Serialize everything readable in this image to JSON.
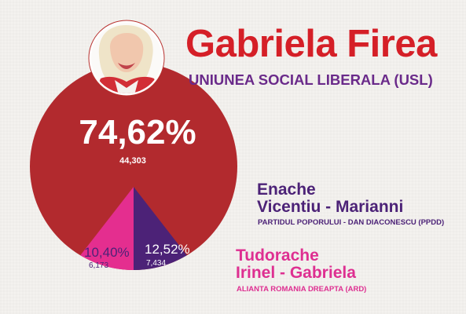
{
  "winner": {
    "name": "Gabriela Firea",
    "party": "UNIUNEA SOCIAL LIBERALA (USL)"
  },
  "candidates": [
    {
      "name_line1": "Enache",
      "name_line2": "Vicentiu - Marianni",
      "party": "PARTIDUL POPORULUI - DAN DIACONESCU (PPDD)"
    },
    {
      "name_line1": "Tudorache",
      "name_line2": "Irinel - Gabriela",
      "party": "ALIANTA ROMANIA DREAPTA (ARD)"
    }
  ],
  "colors": {
    "winner": "#b22a2e",
    "ppdd": "#4c2277",
    "ard": "#e42e8f",
    "title": "#d51f27"
  },
  "chart_data": {
    "type": "pie",
    "slices": [
      {
        "label": "Gabriela Firea",
        "percent": 74.62,
        "percent_text": "74,62%",
        "votes": 44303,
        "votes_text": "44,303",
        "color": "#b22a2e"
      },
      {
        "label": "Enache Vicentiu - Marianni",
        "percent": 12.52,
        "percent_text": "12,52%",
        "votes": 7434,
        "votes_text": "7,434",
        "color": "#4c2277"
      },
      {
        "label": "Tudorache Irinel - Gabriela",
        "percent": 10.4,
        "percent_text": "10,40%",
        "votes": 6173,
        "votes_text": "6,173",
        "color": "#e42e8f"
      }
    ]
  }
}
